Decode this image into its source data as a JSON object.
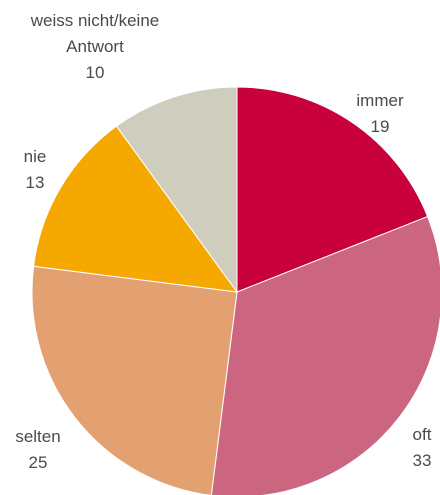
{
  "chart_data": {
    "type": "pie",
    "categories": [
      "immer",
      "oft",
      "selten",
      "nie",
      "weiss nicht/keine Antwort"
    ],
    "values": [
      19,
      33,
      25,
      13,
      10
    ],
    "colors": [
      "#c8003c",
      "#cc6680",
      "#e3a070",
      "#f5a800",
      "#cfcdbd"
    ],
    "start_angle": 90,
    "direction": "clockwise"
  }
}
